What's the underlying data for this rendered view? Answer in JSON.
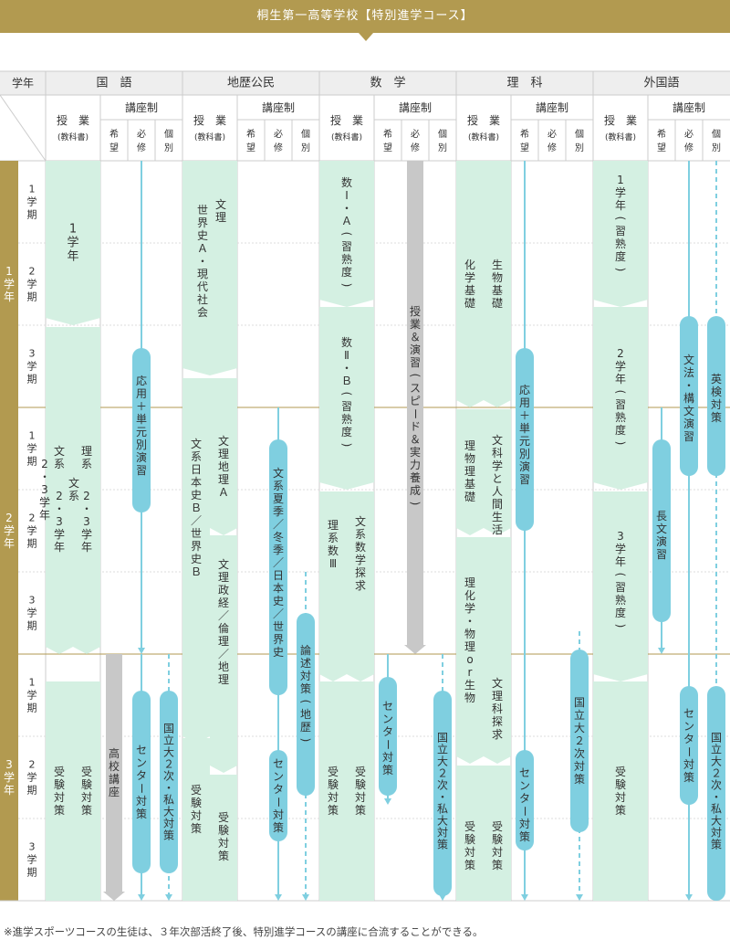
{
  "title": "桐生第一高等学校【特別進学コース】",
  "footnote": "※進学スポーツコースの生徒は、３年次部活終了後、特別進学コースの講座に合流することができる。",
  "colors": {
    "banner": "#b29a50",
    "header_bg": "#eeeeee",
    "year_bg": "#b29a50",
    "class_fill": "#d4f0e2",
    "course_fill": "#7fcfe0",
    "arrow_gray": "#c8c8c8",
    "grid_line": "#cccccc"
  },
  "header": {
    "year_label": "学年",
    "subjects": [
      "国　語",
      "地歴公民",
      "数　学",
      "理　科",
      "外国語"
    ],
    "class_label": "授　業",
    "class_sub": "(教科書)",
    "course_label": "講座制",
    "course_types": [
      "希望",
      "必修",
      "個別"
    ]
  },
  "years": [
    "1学年",
    "2学年",
    "3学年"
  ],
  "terms": [
    "1学期",
    "2学期",
    "3学期"
  ],
  "blocks": {
    "kokugo": {
      "y1": "1学年",
      "bunkei": "文系 2・3学年",
      "rikei": "理系 2・3学年",
      "exam1": "受験対策",
      "exam2": "受験対策",
      "kibou": "高校講座",
      "hisshu1": "応用＋単元別演習",
      "hisshu2": "センター対策",
      "kobetsu": "国立大２次・私大対策"
    },
    "chireki": {
      "y1": "文理 世界史Ａ・現代社会",
      "bunkei": "文系 日本史Ｂ／世界史Ｂ",
      "chiri": "文理 地理Ａ",
      "seikei": "文理 政経／倫理／地理",
      "exam1": "受験対策",
      "exam2": "受験対策",
      "hisshu1": "文系 夏季／冬季／日本史／世界史",
      "hisshu2": "センター対策",
      "kobetsu": "論述対策(地歴)"
    },
    "suugaku": {
      "s1": "数Ⅰ・Ａ(習熟度)",
      "s2": "数Ⅱ・Ｂ(習熟度)",
      "rikei": "理系 数Ⅲ",
      "bunkei": "文系 数学探求",
      "exam1": "受験対策",
      "exam2": "受験対策",
      "gray": "授業＆演習(スピード＆実力養成)",
      "hisshu": "センター対策",
      "kobetsu": "国立大２次・私大対策"
    },
    "rika": {
      "kagaku": "化学基礎",
      "seibutsu": "生物基礎",
      "butsuri": "理 物理基礎",
      "kagakujin": "文 科学と人間生活",
      "rikei": "理 化学・物理 or 生物",
      "bunkei": "文 理科探求",
      "exam1": "受験対策",
      "exam2": "受験対策",
      "hisshu1": "応用＋単元別演習",
      "hisshu2": "センター対策",
      "kobetsu": "国立大２次対策"
    },
    "gaikoku": {
      "y1": "1学年(習熟度)",
      "y2": "2学年(習熟度)",
      "y3": "3学年(習熟度)",
      "exam": "受験対策",
      "kibou": "長文演習",
      "hisshu1": "文法・構文演習",
      "hisshu2": "センター対策",
      "kobetsu1": "英検対策",
      "kobetsu2": "国立大２次・私大対策"
    }
  }
}
